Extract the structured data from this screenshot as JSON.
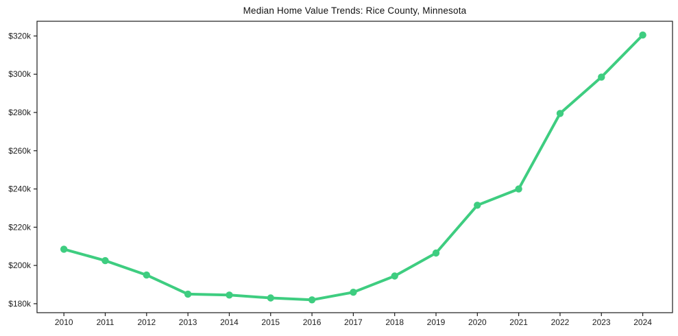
{
  "chart_data": {
    "type": "line",
    "title": "Median Home Value Trends: Rice County, Minnesota",
    "xlabel": "",
    "ylabel": "",
    "x": [
      2010,
      2011,
      2012,
      2013,
      2014,
      2015,
      2016,
      2017,
      2018,
      2019,
      2020,
      2021,
      2022,
      2023,
      2024
    ],
    "x_tick_labels": [
      "2010",
      "2011",
      "2012",
      "2013",
      "2014",
      "2015",
      "2016",
      "2017",
      "2018",
      "2019",
      "2020",
      "2021",
      "2022",
      "2023",
      "2024"
    ],
    "values": [
      208500,
      202500,
      195000,
      185000,
      184500,
      183000,
      182000,
      186000,
      194500,
      206500,
      231500,
      240000,
      279500,
      298500,
      320500
    ],
    "y_tick_values": [
      180000,
      200000,
      220000,
      240000,
      260000,
      280000,
      300000,
      320000
    ],
    "y_tick_labels": [
      "$180k",
      "$200k",
      "$220k",
      "$240k",
      "$260k",
      "$280k",
      "$300k",
      "$320k"
    ],
    "ylim": [
      175300,
      327700
    ],
    "xlim": [
      2009.35,
      2024.72
    ],
    "grid": false,
    "legend": false,
    "line_color": "#3ecd80",
    "marker": "circle",
    "axis_color": "#1c1c1c",
    "tick_label_color": "#1c1c1c",
    "background": "#ffffff"
  }
}
